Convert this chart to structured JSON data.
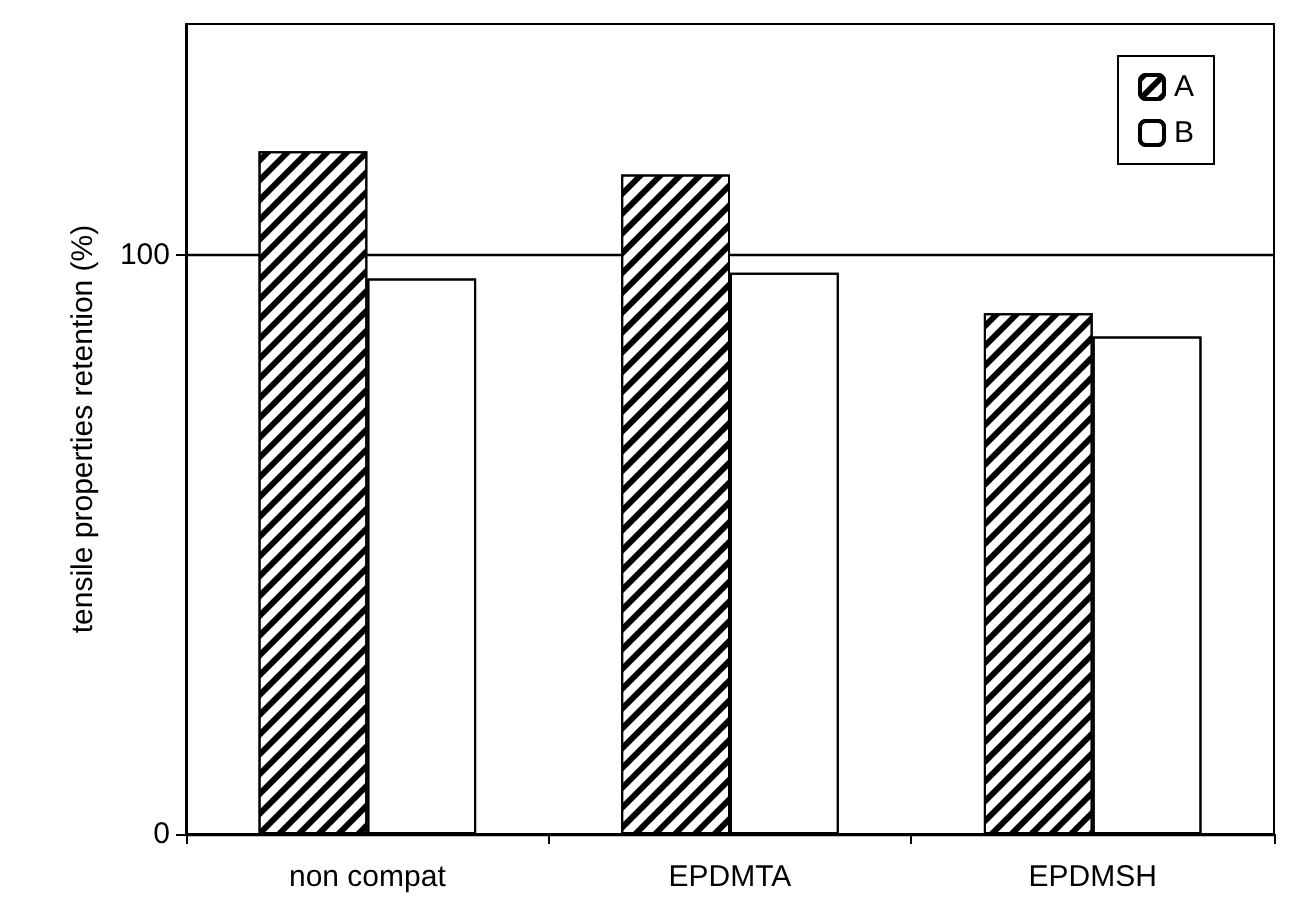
{
  "chart_data": {
    "type": "bar",
    "ylabel": "tensile properties retention (%)",
    "categories": [
      "non compat",
      "EPDMTA",
      "EPDMSH"
    ],
    "series": [
      {
        "name": "A",
        "color": "#ffffff",
        "values": [
          118,
          114,
          90
        ]
      },
      {
        "name": "B",
        "color": "#ffffff",
        "values": [
          96,
          97,
          86
        ]
      }
    ],
    "ylim": [
      0,
      140
    ],
    "yticks": [
      0,
      100
    ],
    "grid": "y",
    "legend": "top right"
  }
}
